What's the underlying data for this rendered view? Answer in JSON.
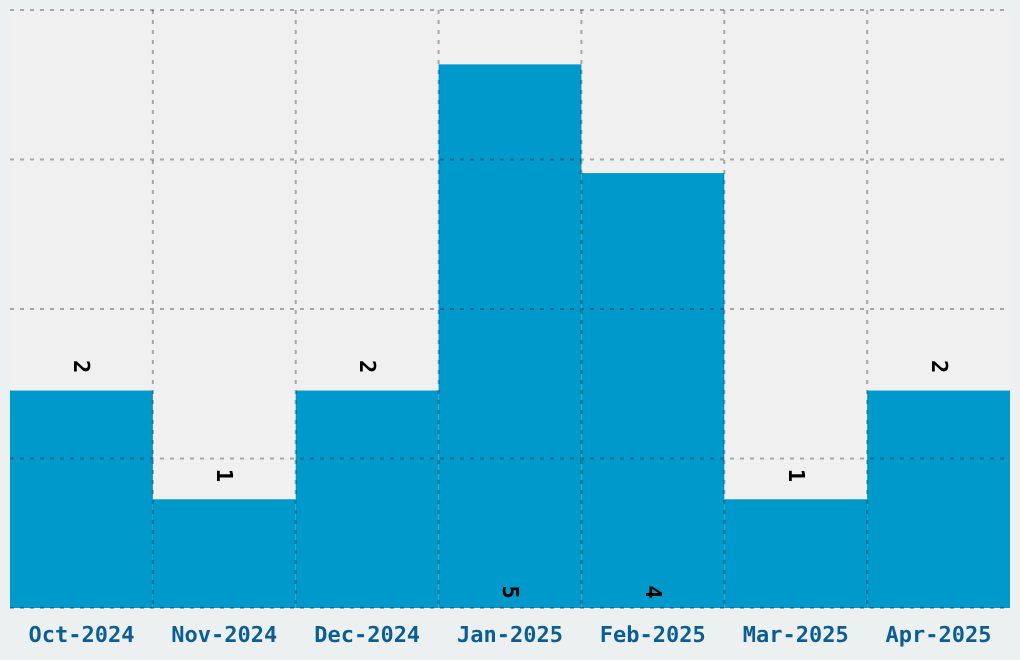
{
  "chart_data": {
    "type": "bar",
    "categories": [
      "Oct-2024",
      "Nov-2024",
      "Dec-2024",
      "Jan-2025",
      "Feb-2025",
      "Mar-2025",
      "Apr-2025"
    ],
    "values": [
      2,
      1,
      2,
      5,
      4,
      1,
      2
    ],
    "color": "#0099cc",
    "ylim": [
      0,
      5.5
    ],
    "yticks": [
      {
        "value": 0,
        "label": null
      },
      {
        "value": 1.375,
        "label": null
      },
      {
        "value": 2.75,
        "label": null
      },
      {
        "value": 4.125,
        "label": null
      },
      {
        "value": 5.5,
        "label": null
      }
    ],
    "tick_labels": "x",
    "grid": true,
    "data_labels": true
  }
}
